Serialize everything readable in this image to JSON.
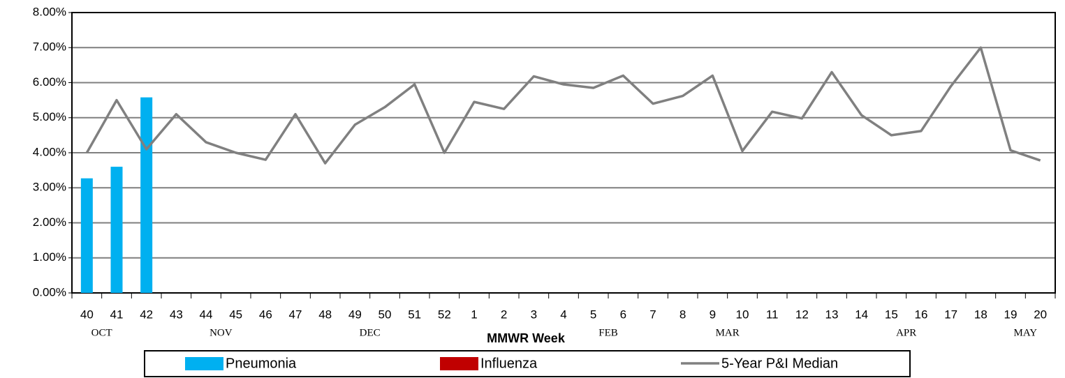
{
  "chart_data": {
    "type": "bar_line",
    "categories": [
      "40",
      "41",
      "42",
      "43",
      "44",
      "45",
      "46",
      "47",
      "48",
      "49",
      "50",
      "51",
      "52",
      "1",
      "2",
      "3",
      "4",
      "5",
      "6",
      "7",
      "8",
      "9",
      "10",
      "11",
      "12",
      "13",
      "14",
      "15",
      "16",
      "17",
      "18",
      "19",
      "20"
    ],
    "months": [
      "OCT",
      null,
      null,
      null,
      "NOV",
      null,
      null,
      null,
      null,
      "DEC",
      null,
      null,
      null,
      null,
      null,
      null,
      null,
      "FEB",
      null,
      null,
      null,
      "MAR",
      null,
      null,
      null,
      null,
      null,
      "APR",
      null,
      null,
      null,
      "MAY",
      null
    ],
    "x_label": "MMWR Week",
    "series": [
      {
        "name": "Pneumonia",
        "kind": "bar",
        "color": "#00b0f0",
        "values": [
          3.27,
          3.6,
          5.58,
          null,
          null,
          null,
          null,
          null,
          null,
          null,
          null,
          null,
          null,
          null,
          null,
          null,
          null,
          null,
          null,
          null,
          null,
          null,
          null,
          null,
          null,
          null,
          null,
          null,
          null,
          null,
          null,
          null,
          null
        ]
      },
      {
        "name": "Influenza",
        "kind": "bar",
        "color": "#c00000",
        "values": [
          0,
          0,
          0,
          null,
          null,
          null,
          null,
          null,
          null,
          null,
          null,
          null,
          null,
          null,
          null,
          null,
          null,
          null,
          null,
          null,
          null,
          null,
          null,
          null,
          null,
          null,
          null,
          null,
          null,
          null,
          null,
          null,
          null
        ]
      },
      {
        "name": "5-Year P&I Median",
        "kind": "line",
        "color": "#808080",
        "values": [
          4.0,
          5.5,
          4.1,
          5.1,
          4.3,
          4.0,
          3.8,
          5.1,
          3.7,
          4.8,
          5.3,
          5.95,
          4.0,
          5.45,
          5.25,
          6.18,
          5.95,
          5.85,
          6.2,
          5.4,
          5.62,
          6.2,
          4.05,
          5.17,
          4.98,
          6.3,
          5.07,
          4.5,
          4.62,
          5.9,
          7.0,
          4.07,
          3.78
        ]
      }
    ],
    "ylim": [
      0,
      8
    ],
    "yticks": [
      {
        "value": 0,
        "label": "0.00%"
      },
      {
        "value": 1,
        "label": "1.00%"
      },
      {
        "value": 2,
        "label": "2.00%"
      },
      {
        "value": 3,
        "label": "3.00%"
      },
      {
        "value": 4,
        "label": "4.00%"
      },
      {
        "value": 5,
        "label": "5.00%"
      },
      {
        "value": 6,
        "label": "6.00%"
      },
      {
        "value": 7,
        "label": "7.00%"
      },
      {
        "value": 8,
        "label": "8.00%"
      }
    ],
    "grid": true
  }
}
